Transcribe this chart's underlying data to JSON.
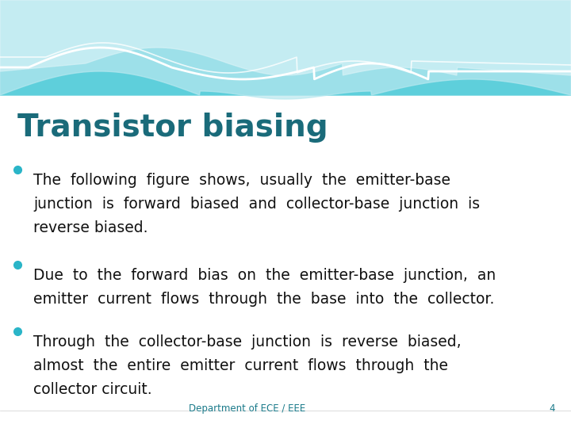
{
  "title": "Transistor biasing",
  "title_color": "#1a6b7a",
  "title_fontsize": 28,
  "bullet_color": "#2ab5c8",
  "text_color": "#111111",
  "bullet_fontsize": 13.5,
  "footer_text": "Department of ECE / EEE",
  "footer_page": "4",
  "footer_color": "#1a7a8a",
  "footer_fontsize": 8.5,
  "bg_color": "#ffffff",
  "bullet1_lines": [
    "The  following  figure  shows,  usually  the  emitter-base",
    "junction  is  forward  biased  and  collector-base  junction  is",
    "reverse biased."
  ],
  "bullet2_lines": [
    "Due  to  the  forward  bias  on  the  emitter-base  junction,  an",
    "emitter  current  flows  through  the  base  into  the  collector."
  ],
  "bullet3_lines": [
    "Through  the  collector-base  junction  is  reverse  biased,",
    "almost  the  entire  emitter  current  flows  through  the",
    "collector circuit."
  ],
  "header_teal": "#5ecfdb",
  "header_light": "#b8e8ef",
  "header_pale": "#daf3f7"
}
